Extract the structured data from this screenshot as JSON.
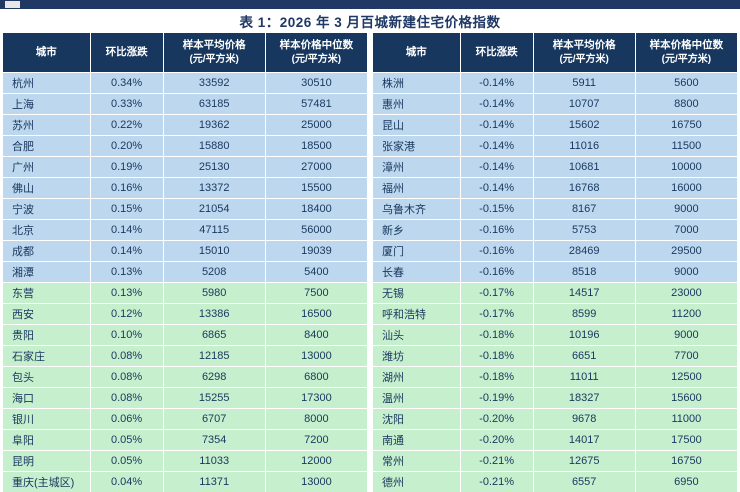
{
  "title": "表 1：2026 年 3 月百城新建住宅价格指数",
  "columns": [
    {
      "label": "城市",
      "sub": ""
    },
    {
      "label": "环比涨跌",
      "sub": ""
    },
    {
      "label": "样本平均价格",
      "sub": "(元/平方米)"
    },
    {
      "label": "样本价格中位数",
      "sub": "(元/平方米)"
    }
  ],
  "colors": {
    "header_bg": "#17375E",
    "rise_row_bg": "#BDD7EE",
    "fall_row_bg": "#C6EFCE",
    "cell_text": "#17375E",
    "title_text": "#1F3864",
    "top_strip": "#1F3864"
  },
  "left_table": {
    "rows": [
      {
        "city": "杭州",
        "change": "0.34%",
        "avg": "33592",
        "median": "30510",
        "tier": "blue"
      },
      {
        "city": "上海",
        "change": "0.33%",
        "avg": "63185",
        "median": "57481",
        "tier": "blue"
      },
      {
        "city": "苏州",
        "change": "0.22%",
        "avg": "19362",
        "median": "25000",
        "tier": "blue"
      },
      {
        "city": "合肥",
        "change": "0.20%",
        "avg": "15880",
        "median": "18500",
        "tier": "blue"
      },
      {
        "city": "广州",
        "change": "0.19%",
        "avg": "25130",
        "median": "27000",
        "tier": "blue"
      },
      {
        "city": "佛山",
        "change": "0.16%",
        "avg": "13372",
        "median": "15500",
        "tier": "blue"
      },
      {
        "city": "宁波",
        "change": "0.15%",
        "avg": "21054",
        "median": "18400",
        "tier": "blue"
      },
      {
        "city": "北京",
        "change": "0.14%",
        "avg": "47115",
        "median": "56000",
        "tier": "blue"
      },
      {
        "city": "成都",
        "change": "0.14%",
        "avg": "15010",
        "median": "19039",
        "tier": "blue"
      },
      {
        "city": "湘潭",
        "change": "0.13%",
        "avg": "5208",
        "median": "5400",
        "tier": "blue"
      },
      {
        "city": "东营",
        "change": "0.13%",
        "avg": "5980",
        "median": "7500",
        "tier": "green"
      },
      {
        "city": "西安",
        "change": "0.12%",
        "avg": "13386",
        "median": "16500",
        "tier": "green"
      },
      {
        "city": "贵阳",
        "change": "0.10%",
        "avg": "6865",
        "median": "8400",
        "tier": "green"
      },
      {
        "city": "石家庄",
        "change": "0.08%",
        "avg": "12185",
        "median": "13000",
        "tier": "green"
      },
      {
        "city": "包头",
        "change": "0.08%",
        "avg": "6298",
        "median": "6800",
        "tier": "green"
      },
      {
        "city": "海口",
        "change": "0.08%",
        "avg": "15255",
        "median": "17300",
        "tier": "green"
      },
      {
        "city": "银川",
        "change": "0.06%",
        "avg": "6707",
        "median": "8000",
        "tier": "green"
      },
      {
        "city": "阜阳",
        "change": "0.05%",
        "avg": "7354",
        "median": "7200",
        "tier": "green"
      },
      {
        "city": "昆明",
        "change": "0.05%",
        "avg": "11033",
        "median": "12000",
        "tier": "green"
      },
      {
        "city": "重庆(主城区)",
        "change": "0.04%",
        "avg": "11371",
        "median": "13000",
        "tier": "green"
      }
    ]
  },
  "right_table": {
    "rows": [
      {
        "city": "株洲",
        "change": "-0.14%",
        "avg": "5911",
        "median": "5600",
        "tier": "blue"
      },
      {
        "city": "惠州",
        "change": "-0.14%",
        "avg": "10707",
        "median": "8800",
        "tier": "blue"
      },
      {
        "city": "昆山",
        "change": "-0.14%",
        "avg": "15602",
        "median": "16750",
        "tier": "blue"
      },
      {
        "city": "张家港",
        "change": "-0.14%",
        "avg": "11016",
        "median": "11500",
        "tier": "blue"
      },
      {
        "city": "漳州",
        "change": "-0.14%",
        "avg": "10681",
        "median": "10000",
        "tier": "blue"
      },
      {
        "city": "福州",
        "change": "-0.14%",
        "avg": "16768",
        "median": "16000",
        "tier": "blue"
      },
      {
        "city": "乌鲁木齐",
        "change": "-0.15%",
        "avg": "8167",
        "median": "9000",
        "tier": "blue"
      },
      {
        "city": "新乡",
        "change": "-0.16%",
        "avg": "5753",
        "median": "7000",
        "tier": "blue"
      },
      {
        "city": "厦门",
        "change": "-0.16%",
        "avg": "28469",
        "median": "29500",
        "tier": "blue"
      },
      {
        "city": "长春",
        "change": "-0.16%",
        "avg": "8518",
        "median": "9000",
        "tier": "blue"
      },
      {
        "city": "无锡",
        "change": "-0.17%",
        "avg": "14517",
        "median": "23000",
        "tier": "green"
      },
      {
        "city": "呼和浩特",
        "change": "-0.17%",
        "avg": "8599",
        "median": "11200",
        "tier": "green"
      },
      {
        "city": "汕头",
        "change": "-0.18%",
        "avg": "10196",
        "median": "9000",
        "tier": "green"
      },
      {
        "city": "潍坊",
        "change": "-0.18%",
        "avg": "6651",
        "median": "7700",
        "tier": "green"
      },
      {
        "city": "湖州",
        "change": "-0.18%",
        "avg": "11011",
        "median": "12500",
        "tier": "green"
      },
      {
        "city": "温州",
        "change": "-0.19%",
        "avg": "18327",
        "median": "15600",
        "tier": "green"
      },
      {
        "city": "沈阳",
        "change": "-0.20%",
        "avg": "9678",
        "median": "11000",
        "tier": "green"
      },
      {
        "city": "南通",
        "change": "-0.20%",
        "avg": "14017",
        "median": "17500",
        "tier": "green"
      },
      {
        "city": "常州",
        "change": "-0.21%",
        "avg": "12675",
        "median": "16750",
        "tier": "green"
      },
      {
        "city": "德州",
        "change": "-0.21%",
        "avg": "6557",
        "median": "6950",
        "tier": "green"
      }
    ]
  }
}
